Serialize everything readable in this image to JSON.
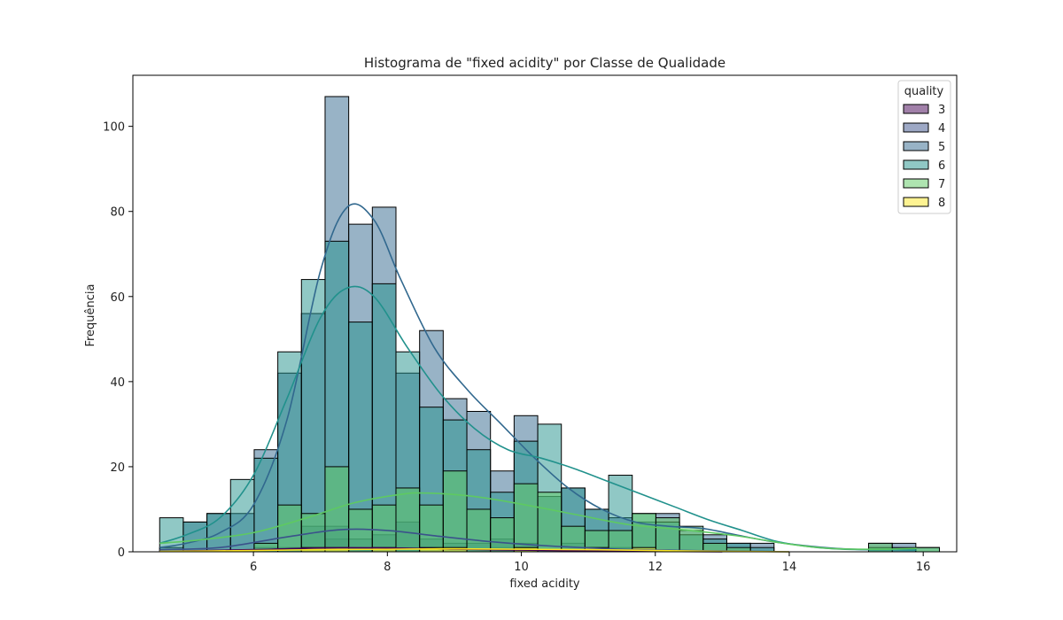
{
  "chart_data": {
    "type": "histogram",
    "title": "Histograma de \"fixed acidity\" por Classe de Qualidade",
    "xlabel": "fixed acidity",
    "ylabel": "Frequência",
    "xlim": [
      4.2,
      16.5
    ],
    "ylim": [
      0,
      112
    ],
    "xticks": [
      6,
      8,
      10,
      12,
      14,
      16
    ],
    "yticks": [
      0,
      20,
      40,
      60,
      80,
      100
    ],
    "grid": false,
    "legend": {
      "title": "quality",
      "placement": "top-right"
    },
    "bin_start": 4.6,
    "bin_width": 0.3528,
    "series": [
      {
        "name": "3",
        "color": "#440154",
        "values": [
          0,
          0,
          0,
          0,
          0,
          0,
          1,
          3,
          1,
          1,
          1,
          1,
          0,
          0,
          1,
          0,
          0,
          0,
          0,
          0,
          0,
          0,
          0,
          0,
          0,
          0,
          0,
          0,
          0,
          0,
          0,
          0,
          0
        ],
        "kde": [
          [
            4.6,
            0.1
          ],
          [
            6,
            0.5
          ],
          [
            7,
            0.9
          ],
          [
            8,
            0.9
          ],
          [
            9,
            0.6
          ],
          [
            10,
            0.4
          ],
          [
            11,
            0.2
          ],
          [
            12,
            0.1
          ],
          [
            13,
            0.0
          ]
        ]
      },
      {
        "name": "4",
        "color": "#3b528b",
        "values": [
          0,
          0,
          0,
          0,
          1,
          1,
          6,
          6,
          3,
          4,
          7,
          3,
          2,
          2,
          3,
          2,
          0,
          2,
          1,
          1,
          0,
          0,
          0,
          0,
          0,
          0,
          0,
          0,
          0,
          0,
          0,
          0,
          0
        ],
        "kde": [
          [
            4.6,
            0.5
          ],
          [
            5.5,
            1
          ],
          [
            6.5,
            3.5
          ],
          [
            7.3,
            5.2
          ],
          [
            8,
            5
          ],
          [
            8.8,
            3.6
          ],
          [
            9.6,
            2.3
          ],
          [
            10.5,
            1.3
          ],
          [
            11.5,
            0.6
          ],
          [
            12.5,
            0.3
          ],
          [
            13.5,
            0.1
          ],
          [
            14,
            0
          ]
        ]
      },
      {
        "name": "5",
        "color": "#31688e",
        "values": [
          1,
          7,
          9,
          9,
          24,
          42,
          56,
          107,
          77,
          81,
          42,
          52,
          36,
          33,
          19,
          32,
          13,
          15,
          10,
          8,
          7,
          9,
          5,
          4,
          2,
          2,
          0,
          0,
          0,
          0,
          2,
          2,
          0
        ],
        "kde": [
          [
            4.6,
            1
          ],
          [
            5,
            2
          ],
          [
            5.5,
            4.5
          ],
          [
            6,
            11
          ],
          [
            6.5,
            31
          ],
          [
            7,
            66
          ],
          [
            7.4,
            81
          ],
          [
            7.8,
            78
          ],
          [
            8.2,
            64
          ],
          [
            8.7,
            48
          ],
          [
            9.2,
            38
          ],
          [
            9.7,
            30
          ],
          [
            10.2,
            22
          ],
          [
            10.7,
            15
          ],
          [
            11.2,
            10
          ],
          [
            11.7,
            7
          ],
          [
            12.2,
            6
          ],
          [
            12.7,
            5.5
          ],
          [
            13.2,
            4
          ],
          [
            13.7,
            2.5
          ],
          [
            14.2,
            1.5
          ],
          [
            14.7,
            0.8
          ],
          [
            15.2,
            0.5
          ],
          [
            15.8,
            0.5
          ]
        ]
      },
      {
        "name": "6",
        "color": "#21918c",
        "values": [
          8,
          7,
          9,
          17,
          22,
          47,
          64,
          73,
          54,
          63,
          47,
          34,
          31,
          24,
          14,
          26,
          30,
          15,
          10,
          18,
          9,
          7,
          4,
          3,
          2,
          1,
          0,
          0,
          0,
          0,
          1,
          1,
          1
        ],
        "kde": [
          [
            4.6,
            2
          ],
          [
            5,
            4
          ],
          [
            5.5,
            8
          ],
          [
            6,
            18
          ],
          [
            6.5,
            36
          ],
          [
            7,
            55
          ],
          [
            7.4,
            62
          ],
          [
            7.8,
            60
          ],
          [
            8.3,
            48
          ],
          [
            8.8,
            37
          ],
          [
            9.3,
            29
          ],
          [
            9.8,
            24
          ],
          [
            10.3,
            22
          ],
          [
            10.8,
            19.5
          ],
          [
            11.3,
            16.5
          ],
          [
            11.8,
            13.5
          ],
          [
            12.3,
            10.5
          ],
          [
            12.8,
            7.5
          ],
          [
            13.3,
            5
          ],
          [
            13.8,
            2.5
          ],
          [
            14.3,
            1.2
          ],
          [
            14.8,
            0.6
          ],
          [
            15.4,
            0.5
          ],
          [
            15.9,
            0.4
          ]
        ]
      },
      {
        "name": "7",
        "color": "#5ec962",
        "values": [
          0,
          0,
          0,
          0,
          2,
          11,
          9,
          20,
          10,
          11,
          15,
          11,
          19,
          10,
          8,
          16,
          14,
          6,
          5,
          5,
          9,
          8,
          6,
          2,
          1,
          0,
          0,
          0,
          0,
          0,
          2,
          0,
          1
        ],
        "kde": [
          [
            4.6,
            2
          ],
          [
            5.2,
            2.8
          ],
          [
            6,
            4.5
          ],
          [
            6.8,
            8
          ],
          [
            7.5,
            11.5
          ],
          [
            8.2,
            13.5
          ],
          [
            8.6,
            13.8
          ],
          [
            9.3,
            13
          ],
          [
            10,
            11.2
          ],
          [
            10.8,
            8.8
          ],
          [
            11.6,
            6.4
          ],
          [
            12.4,
            5.2
          ],
          [
            13.2,
            3.8
          ],
          [
            14,
            1.8
          ],
          [
            14.6,
            0.8
          ],
          [
            15.3,
            0.6
          ],
          [
            15.9,
            0.8
          ]
        ]
      },
      {
        "name": "8",
        "color": "#fde725",
        "values": [
          0,
          0,
          0,
          0,
          0,
          0,
          1,
          1,
          0,
          1,
          0,
          1,
          1,
          0,
          0,
          1,
          0,
          0,
          1,
          0,
          1,
          0,
          0,
          0,
          0,
          0,
          0,
          0,
          0,
          0,
          0,
          0,
          0
        ],
        "kde": [
          [
            4.6,
            0.1
          ],
          [
            6,
            0.3
          ],
          [
            7,
            0.5
          ],
          [
            8,
            0.6
          ],
          [
            9,
            0.7
          ],
          [
            10,
            0.6
          ],
          [
            11,
            0.5
          ],
          [
            12,
            0.3
          ],
          [
            13,
            0.1
          ],
          [
            14,
            0
          ]
        ]
      }
    ]
  }
}
